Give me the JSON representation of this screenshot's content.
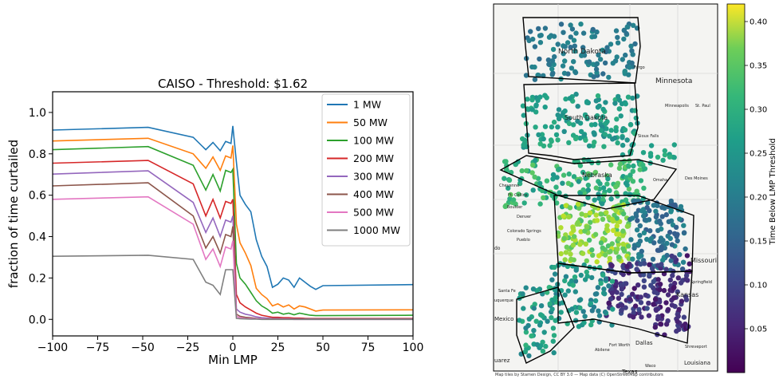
{
  "chart_data": [
    {
      "type": "line",
      "title": "CAISO - Threshold: $1.62",
      "xlabel": "Min LMP",
      "ylabel": "fraction of time curtailed",
      "xlim": [
        -100,
        100
      ],
      "ylim": [
        -0.08,
        1.1
      ],
      "xticks": [
        "−100",
        "−75",
        "−50",
        "−25",
        "0",
        "25",
        "50",
        "75",
        "100"
      ],
      "yticks": [
        "0.0",
        "0.2",
        "0.4",
        "0.6",
        "0.8",
        "1.0"
      ],
      "legend_position": "top-right",
      "grid": false,
      "x": [
        -100,
        -47,
        -22,
        -15,
        -11,
        -7,
        -4,
        -1,
        0,
        2,
        4,
        7,
        10,
        13,
        16,
        19,
        22,
        25,
        28,
        31,
        34,
        37,
        40,
        43,
        46,
        50,
        100
      ],
      "series": [
        {
          "name": "1 MW",
          "color": "#1f77b4",
          "values": [
            0.915,
            0.928,
            0.88,
            0.82,
            0.855,
            0.815,
            0.86,
            0.85,
            0.935,
            0.76,
            0.6,
            0.555,
            0.52,
            0.385,
            0.305,
            0.255,
            0.155,
            0.17,
            0.2,
            0.19,
            0.155,
            0.2,
            0.18,
            0.16,
            0.145,
            0.163,
            0.168
          ]
        },
        {
          "name": "50 MW",
          "color": "#ff7f0e",
          "values": [
            0.862,
            0.875,
            0.8,
            0.73,
            0.785,
            0.72,
            0.79,
            0.78,
            0.84,
            0.46,
            0.37,
            0.32,
            0.26,
            0.15,
            0.12,
            0.1,
            0.065,
            0.075,
            0.06,
            0.07,
            0.05,
            0.065,
            0.06,
            0.05,
            0.04,
            0.045,
            0.046
          ]
        },
        {
          "name": "100 MW",
          "color": "#2ca02c",
          "values": [
            0.82,
            0.835,
            0.745,
            0.625,
            0.7,
            0.62,
            0.72,
            0.71,
            0.725,
            0.27,
            0.2,
            0.17,
            0.13,
            0.09,
            0.065,
            0.05,
            0.03,
            0.035,
            0.025,
            0.03,
            0.022,
            0.03,
            0.025,
            0.02,
            0.018,
            0.018,
            0.02
          ]
        },
        {
          "name": "200 MW",
          "color": "#d62728",
          "values": [
            0.755,
            0.768,
            0.655,
            0.5,
            0.58,
            0.49,
            0.57,
            0.56,
            0.58,
            0.12,
            0.08,
            0.06,
            0.045,
            0.03,
            0.02,
            0.015,
            0.01,
            0.01,
            0.008,
            0.008,
            0.006,
            0.006,
            0.005,
            0.004,
            0.004,
            0.004,
            0.004
          ]
        },
        {
          "name": "300 MW",
          "color": "#9467bd",
          "values": [
            0.702,
            0.718,
            0.565,
            0.42,
            0.49,
            0.4,
            0.48,
            0.47,
            0.5,
            0.05,
            0.035,
            0.025,
            0.02,
            0.012,
            0.008,
            0.006,
            0.004,
            0.004,
            0.003,
            0.003,
            0.002,
            0.002,
            0.002,
            0.002,
            0.002,
            0.002,
            0.002
          ]
        },
        {
          "name": "400 MW",
          "color": "#8c564b",
          "values": [
            0.645,
            0.66,
            0.5,
            0.345,
            0.4,
            0.32,
            0.41,
            0.4,
            0.45,
            0.025,
            0.015,
            0.01,
            0.008,
            0.005,
            0.003,
            0.002,
            0.002,
            0.002,
            0.001,
            0.001,
            0.001,
            0.001,
            0.001,
            0.001,
            0.001,
            0.001,
            0.001
          ]
        },
        {
          "name": "500 MW",
          "color": "#e377c2",
          "values": [
            0.58,
            0.592,
            0.46,
            0.29,
            0.34,
            0.255,
            0.35,
            0.34,
            0.38,
            0.015,
            0.008,
            0.005,
            0.004,
            0.003,
            0.002,
            0.001,
            0.001,
            0.001,
            0.001,
            0.001,
            0.0,
            0.0,
            0.0,
            0.0,
            0.0,
            0.0,
            0.0
          ]
        },
        {
          "name": "1000 MW",
          "color": "#7f7f7f",
          "values": [
            0.305,
            0.31,
            0.29,
            0.18,
            0.165,
            0.12,
            0.24,
            0.24,
            0.24,
            0.005,
            0.003,
            0.002,
            0.001,
            0.001,
            0.0,
            0.0,
            0.0,
            0.0,
            0.0,
            0.0,
            0.0,
            0.0,
            0.0,
            0.0,
            0.0,
            0.0,
            0.0
          ]
        }
      ]
    },
    {
      "type": "scatter",
      "title": "",
      "colorbar_label": "Time Below LMP Threshold",
      "colorbar_ticks": [
        "0.05",
        "0.10",
        "0.15",
        "0.20",
        "0.25",
        "0.30",
        "0.35",
        "0.40"
      ],
      "colorbar_range": [
        0.0,
        0.42
      ],
      "colormap": "viridis",
      "map_labels": [
        "North Dakota",
        "Fargo",
        "Minnesota",
        "Minneapolis",
        "St. Paul",
        "South Dakota",
        "Sioux Falls",
        "Nebraska",
        "Omaha",
        "Des Moines",
        "Cheyenne",
        "Ft. Collins",
        "Boulder",
        "Denver",
        "Colorado Springs",
        "Pueblo",
        "do",
        "Missouri",
        "Springfield",
        "Kansas",
        "Santa Fe",
        "uquerque",
        "Mexico",
        "Fort Worth",
        "Dallas",
        "Abilene",
        "Shreveport",
        "Louisiana",
        "Waco",
        "Texas",
        "uarez"
      ],
      "attribution": "Map tiles by Stamen Design, CC BY 3.0 — Map data (C) OpenStreetMap contributors"
    }
  ]
}
